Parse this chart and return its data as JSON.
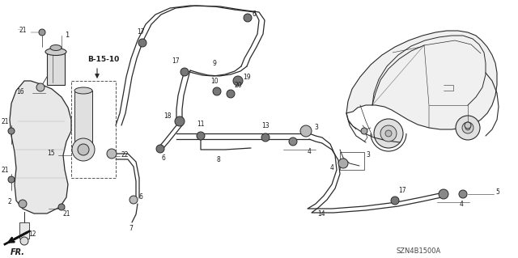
{
  "bg": "#ffffff",
  "lc": "#2a2a2a",
  "tc": "#1a1a1a",
  "fw": 6.4,
  "fh": 3.19,
  "dpi": 100,
  "note": "SZN4B1500A"
}
